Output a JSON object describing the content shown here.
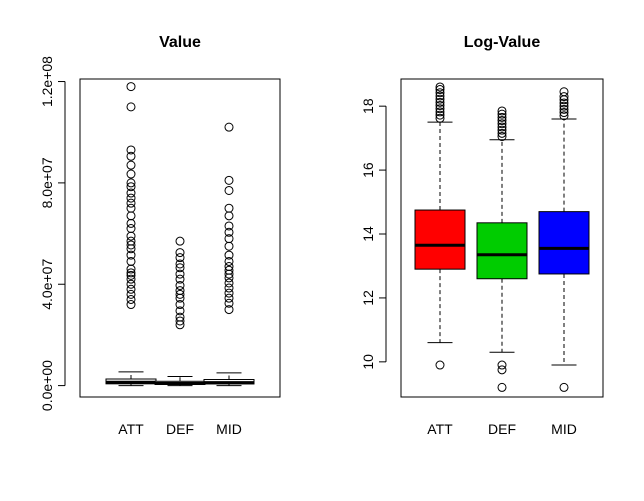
{
  "chart_data": [
    {
      "type": "box",
      "title": "Value",
      "categories": [
        "ATT",
        "DEF",
        "MID"
      ],
      "ylim": [
        -4500000,
        121000000
      ],
      "yticks": [
        0,
        40000000,
        80000000,
        120000000
      ],
      "ytick_labels": [
        "0.0e+00",
        "4.0e+07",
        "8.0e+07",
        "1.2e+08"
      ],
      "boxes": [
        {
          "category": "ATT",
          "q1": 700000,
          "median": 1300000,
          "q3": 2600000,
          "whisker_low": 0,
          "whisker_high": 5400000,
          "fill": "#ffffff",
          "outliers": [
            118000000,
            110000000,
            93000000,
            90500000,
            87000000,
            83500000,
            80000000,
            78500000,
            76000000,
            74000000,
            72000000,
            70000000,
            67000000,
            64000000,
            62000000,
            59000000,
            57000000,
            55500000,
            54000000,
            51500000,
            49000000,
            46000000,
            44500000,
            43500000,
            42000000,
            40000000,
            38000000,
            36000000,
            34000000,
            32000000
          ]
        },
        {
          "category": "DEF",
          "q1": 450000,
          "median": 850000,
          "q3": 1700000,
          "whisker_low": 0,
          "whisker_high": 3600000,
          "fill": "#ffffff",
          "outliers": [
            57000000,
            52500000,
            50500000,
            48000000,
            46500000,
            44000000,
            42000000,
            39500000,
            37500000,
            36000000,
            34500000,
            32000000,
            29500000,
            27000000,
            25500000,
            24000000
          ]
        },
        {
          "category": "MID",
          "q1": 650000,
          "median": 1150000,
          "q3": 2400000,
          "whisker_low": 0,
          "whisker_high": 5000000,
          "fill": "#ffffff",
          "outliers": [
            102000000,
            81000000,
            77000000,
            70000000,
            67000000,
            63000000,
            60500000,
            58000000,
            55000000,
            51500000,
            49000000,
            47000000,
            45500000,
            44000000,
            42500000,
            40500000,
            38500000,
            36500000,
            34500000,
            32500000,
            30000000
          ]
        }
      ]
    },
    {
      "type": "box",
      "title": "Log-Value",
      "categories": [
        "ATT",
        "DEF",
        "MID"
      ],
      "ylim": [
        8.9,
        18.85
      ],
      "yticks": [
        10,
        12,
        14,
        16,
        18
      ],
      "ytick_labels": [
        "10",
        "12",
        "14",
        "16",
        "18"
      ],
      "boxes": [
        {
          "category": "ATT",
          "q1": 12.9,
          "median": 13.65,
          "q3": 14.75,
          "whisker_low": 10.6,
          "whisker_high": 17.5,
          "fill": "#ff0000",
          "outliers": [
            9.9,
            17.62,
            17.72,
            17.82,
            17.92,
            18.02,
            18.12,
            18.22,
            18.32,
            18.42,
            18.52,
            18.6
          ]
        },
        {
          "category": "DEF",
          "q1": 12.6,
          "median": 13.35,
          "q3": 14.35,
          "whisker_low": 10.3,
          "whisker_high": 16.95,
          "fill": "#00cc00",
          "outliers": [
            9.9,
            9.75,
            9.2,
            17.05,
            17.15,
            17.25,
            17.35,
            17.45,
            17.55,
            17.65,
            17.75,
            17.85
          ]
        },
        {
          "category": "MID",
          "q1": 12.75,
          "median": 13.55,
          "q3": 14.7,
          "whisker_low": 9.9,
          "whisker_high": 17.6,
          "fill": "#0000ff",
          "outliers": [
            9.2,
            17.7,
            17.8,
            17.9,
            18.0,
            18.1,
            18.2,
            18.3,
            18.45
          ]
        }
      ]
    }
  ]
}
